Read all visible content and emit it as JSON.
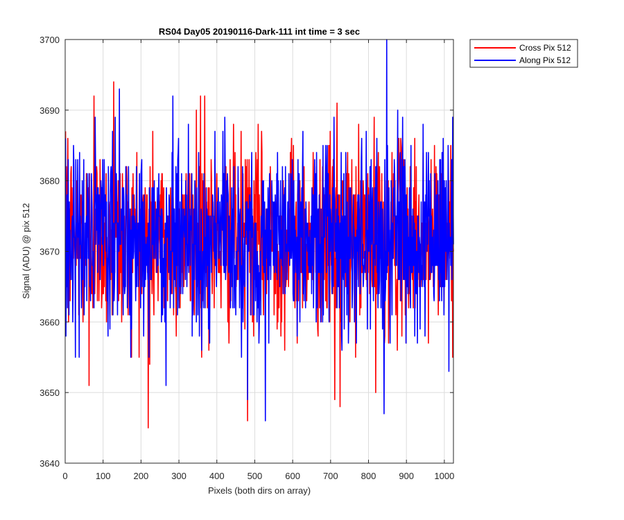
{
  "chart_data": {
    "type": "line",
    "title": "RS04 Day05 20190116-Dark-111 int time = 3 sec",
    "xlabel": "Pixels (both dirs on array)",
    "ylabel": "Signal (ADU) @ pix 512",
    "xlim": [
      0,
      1024
    ],
    "ylim": [
      3640,
      3700
    ],
    "xticks": [
      0,
      100,
      200,
      300,
      400,
      500,
      600,
      700,
      800,
      900,
      1000
    ],
    "yticks": [
      3640,
      3650,
      3660,
      3670,
      3680,
      3690,
      3700
    ],
    "grid": true,
    "legend_position": "outside-top-right",
    "n_points": 1024,
    "series": [
      {
        "name": "Cross Pix 512",
        "color": "#ff0000",
        "mean": 3672,
        "noise_std": 6.5,
        "values_sample": [
          3687,
          3661,
          3682,
          3676,
          3665,
          3679,
          3686,
          3670,
          3660,
          3668,
          3673,
          3676
        ],
        "notable_points": [
          {
            "x": 62,
            "y": 3651
          },
          {
            "x": 75,
            "y": 3692
          },
          {
            "x": 127,
            "y": 3694
          },
          {
            "x": 218,
            "y": 3645
          },
          {
            "x": 222,
            "y": 3654
          },
          {
            "x": 345,
            "y": 3690
          },
          {
            "x": 356,
            "y": 3692
          },
          {
            "x": 367,
            "y": 3692
          },
          {
            "x": 480,
            "y": 3646
          },
          {
            "x": 710,
            "y": 3649
          },
          {
            "x": 716,
            "y": 3691
          },
          {
            "x": 724,
            "y": 3648
          },
          {
            "x": 818,
            "y": 3650
          },
          {
            "x": 957,
            "y": 3657
          }
        ]
      },
      {
        "name": "Along Pix 512",
        "color": "#0000ff",
        "mean": 3672,
        "noise_std": 6.5,
        "values_sample": [
          3686,
          3658,
          3672,
          3665,
          3678,
          3662,
          3674,
          3683,
          3669,
          3661,
          3677,
          3670
        ],
        "notable_points": [
          {
            "x": 142,
            "y": 3693
          },
          {
            "x": 265,
            "y": 3651
          },
          {
            "x": 283,
            "y": 3692
          },
          {
            "x": 324,
            "y": 3688
          },
          {
            "x": 377,
            "y": 3659
          },
          {
            "x": 480,
            "y": 3649
          },
          {
            "x": 510,
            "y": 3657
          },
          {
            "x": 527,
            "y": 3646
          },
          {
            "x": 847,
            "y": 3700
          },
          {
            "x": 840,
            "y": 3647
          },
          {
            "x": 876,
            "y": 3690
          },
          {
            "x": 1011,
            "y": 3653
          }
        ]
      }
    ]
  }
}
